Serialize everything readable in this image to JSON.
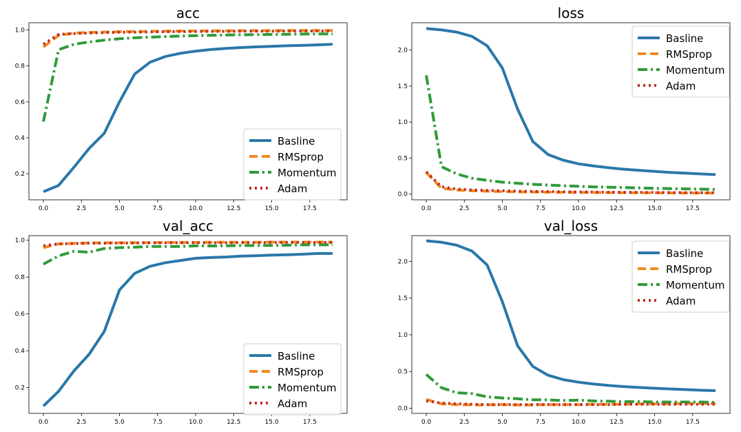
{
  "chart_data": [
    {
      "type": "line",
      "title": "acc",
      "xlabel": "",
      "ylabel": "",
      "xlim": [
        -0.95,
        19.95
      ],
      "ylim": [
        0.055,
        1.04
      ],
      "xticks": [
        0.0,
        2.5,
        5.0,
        7.5,
        10.0,
        12.5,
        15.0,
        17.5
      ],
      "xtick_labels": [
        "0.0",
        "2.5",
        "5.0",
        "7.5",
        "10.0",
        "12.5",
        "15.0",
        "17.5"
      ],
      "yticks": [
        0.2,
        0.4,
        0.6,
        0.8,
        1.0
      ],
      "ytick_labels": [
        "0.2",
        "0.4",
        "0.6",
        "0.8",
        "1.0"
      ],
      "legend_position": "lower-right",
      "grid": false,
      "x": [
        0,
        1,
        2,
        3,
        4,
        5,
        6,
        7,
        8,
        9,
        10,
        11,
        12,
        13,
        14,
        15,
        16,
        17,
        18,
        19
      ],
      "series": [
        {
          "name": "Basline",
          "color": "#2a77a9",
          "style": "solid",
          "values": [
            0.1,
            0.135,
            0.235,
            0.34,
            0.425,
            0.6,
            0.755,
            0.82,
            0.852,
            0.87,
            0.882,
            0.891,
            0.897,
            0.902,
            0.906,
            0.909,
            0.912,
            0.914,
            0.917,
            0.92
          ]
        },
        {
          "name": "RMSprop",
          "color": "#f08a22",
          "style": "dashed",
          "values": [
            0.905,
            0.97,
            0.982,
            0.986,
            0.988,
            0.99,
            0.991,
            0.992,
            0.993,
            0.994,
            0.994,
            0.995,
            0.995,
            0.996,
            0.996,
            0.996,
            0.997,
            0.997,
            0.997,
            0.997
          ]
        },
        {
          "name": "Momentum",
          "color": "#2f9a38",
          "style": "dashdot",
          "values": [
            0.49,
            0.89,
            0.92,
            0.933,
            0.943,
            0.951,
            0.956,
            0.96,
            0.963,
            0.966,
            0.968,
            0.97,
            0.972,
            0.973,
            0.974,
            0.975,
            0.976,
            0.977,
            0.978,
            0.978
          ]
        },
        {
          "name": "Adam",
          "color": "#c12a26",
          "style": "dotted",
          "values": [
            0.92,
            0.975,
            0.98,
            0.983,
            0.985,
            0.987,
            0.988,
            0.989,
            0.99,
            0.991,
            0.991,
            0.992,
            0.992,
            0.993,
            0.993,
            0.993,
            0.994,
            0.994,
            0.994,
            0.994
          ]
        }
      ]
    },
    {
      "type": "line",
      "title": "loss",
      "xlabel": "",
      "ylabel": "",
      "xlim": [
        -0.95,
        19.95
      ],
      "ylim": [
        -0.08,
        2.38
      ],
      "xticks": [
        0.0,
        2.5,
        5.0,
        7.5,
        10.0,
        12.5,
        15.0,
        17.5
      ],
      "xtick_labels": [
        "0.0",
        "2.5",
        "5.0",
        "7.5",
        "10.0",
        "12.5",
        "15.0",
        "17.5"
      ],
      "yticks": [
        0.0,
        0.5,
        1.0,
        1.5,
        2.0
      ],
      "ytick_labels": [
        "0.0",
        "0.5",
        "1.0",
        "1.5",
        "2.0"
      ],
      "legend_position": "upper-right",
      "grid": false,
      "x": [
        0,
        1,
        2,
        3,
        4,
        5,
        6,
        7,
        8,
        9,
        10,
        11,
        12,
        13,
        14,
        15,
        16,
        17,
        18,
        19
      ],
      "series": [
        {
          "name": "Basline",
          "color": "#2a77a9",
          "style": "solid",
          "values": [
            2.3,
            2.28,
            2.25,
            2.19,
            2.06,
            1.75,
            1.18,
            0.73,
            0.55,
            0.47,
            0.42,
            0.39,
            0.365,
            0.345,
            0.33,
            0.315,
            0.3,
            0.29,
            0.28,
            0.27
          ]
        },
        {
          "name": "RMSprop",
          "color": "#f08a22",
          "style": "dashed",
          "values": [
            0.3,
            0.08,
            0.055,
            0.045,
            0.04,
            0.035,
            0.03,
            0.028,
            0.026,
            0.024,
            0.022,
            0.021,
            0.02,
            0.019,
            0.018,
            0.017,
            0.016,
            0.015,
            0.015,
            0.014
          ]
        },
        {
          "name": "Momentum",
          "color": "#2f9a38",
          "style": "dashdot",
          "values": [
            1.65,
            0.38,
            0.28,
            0.22,
            0.19,
            0.165,
            0.15,
            0.135,
            0.125,
            0.115,
            0.108,
            0.1,
            0.095,
            0.09,
            0.085,
            0.08,
            0.075,
            0.072,
            0.068,
            0.065
          ]
        },
        {
          "name": "Adam",
          "color": "#c12a26",
          "style": "dotted",
          "values": [
            0.31,
            0.1,
            0.07,
            0.058,
            0.05,
            0.045,
            0.04,
            0.037,
            0.034,
            0.031,
            0.029,
            0.027,
            0.025,
            0.024,
            0.023,
            0.022,
            0.021,
            0.02,
            0.019,
            0.018
          ]
        }
      ]
    },
    {
      "type": "line",
      "title": "val_acc",
      "xlabel": "",
      "ylabel": "",
      "xlim": [
        -0.95,
        19.95
      ],
      "ylim": [
        0.06,
        1.025
      ],
      "xticks": [
        0.0,
        2.5,
        5.0,
        7.5,
        10.0,
        12.5,
        15.0,
        17.5
      ],
      "xtick_labels": [
        "0.0",
        "2.5",
        "5.0",
        "7.5",
        "10.0",
        "12.5",
        "15.0",
        "17.5"
      ],
      "yticks": [
        0.2,
        0.4,
        0.6,
        0.8,
        1.0
      ],
      "ytick_labels": [
        "0.2",
        "0.4",
        "0.6",
        "0.8",
        "1.0"
      ],
      "legend_position": "lower-right",
      "grid": false,
      "x": [
        0,
        1,
        2,
        3,
        4,
        5,
        6,
        7,
        8,
        9,
        10,
        11,
        12,
        13,
        14,
        15,
        16,
        17,
        18,
        19
      ],
      "series": [
        {
          "name": "Basline",
          "color": "#2a77a9",
          "style": "solid",
          "values": [
            0.1,
            0.18,
            0.29,
            0.38,
            0.505,
            0.73,
            0.82,
            0.858,
            0.878,
            0.89,
            0.902,
            0.906,
            0.909,
            0.914,
            0.916,
            0.919,
            0.921,
            0.924,
            0.928,
            0.928
          ]
        },
        {
          "name": "RMSprop",
          "color": "#f08a22",
          "style": "dashed",
          "values": [
            0.96,
            0.98,
            0.983,
            0.985,
            0.986,
            0.986,
            0.987,
            0.987,
            0.988,
            0.988,
            0.988,
            0.989,
            0.989,
            0.989,
            0.989,
            0.99,
            0.99,
            0.99,
            0.99,
            0.99
          ]
        },
        {
          "name": "Momentum",
          "color": "#2f9a38",
          "style": "dashdot",
          "values": [
            0.87,
            0.915,
            0.94,
            0.935,
            0.955,
            0.96,
            0.962,
            0.966,
            0.966,
            0.966,
            0.97,
            0.969,
            0.97,
            0.971,
            0.971,
            0.972,
            0.973,
            0.975,
            0.975,
            0.975
          ]
        },
        {
          "name": "Adam",
          "color": "#c12a26",
          "style": "dotted",
          "values": [
            0.97,
            0.98,
            0.982,
            0.984,
            0.984,
            0.985,
            0.985,
            0.986,
            0.986,
            0.986,
            0.987,
            0.987,
            0.987,
            0.987,
            0.987,
            0.988,
            0.988,
            0.988,
            0.988,
            0.988
          ]
        }
      ]
    },
    {
      "type": "line",
      "title": "val_loss",
      "xlabel": "",
      "ylabel": "",
      "xlim": [
        -0.95,
        19.95
      ],
      "ylim": [
        -0.07,
        2.35
      ],
      "xticks": [
        0.0,
        2.5,
        5.0,
        7.5,
        10.0,
        12.5,
        15.0,
        17.5
      ],
      "xtick_labels": [
        "0.0",
        "2.5",
        "5.0",
        "7.5",
        "10.0",
        "12.5",
        "15.0",
        "17.5"
      ],
      "yticks": [
        0.0,
        0.5,
        1.0,
        1.5,
        2.0
      ],
      "ytick_labels": [
        "0.0",
        "0.5",
        "1.0",
        "1.5",
        "2.0"
      ],
      "legend_position": "upper-right",
      "grid": false,
      "x": [
        0,
        1,
        2,
        3,
        4,
        5,
        6,
        7,
        8,
        9,
        10,
        11,
        12,
        13,
        14,
        15,
        16,
        17,
        18,
        19
      ],
      "series": [
        {
          "name": "Basline",
          "color": "#2a77a9",
          "style": "solid",
          "values": [
            2.28,
            2.26,
            2.22,
            2.14,
            1.95,
            1.45,
            0.85,
            0.57,
            0.45,
            0.39,
            0.355,
            0.33,
            0.31,
            0.295,
            0.283,
            0.272,
            0.263,
            0.255,
            0.245,
            0.24
          ]
        },
        {
          "name": "RMSprop",
          "color": "#f08a22",
          "style": "dashed",
          "values": [
            0.12,
            0.06,
            0.05,
            0.045,
            0.045,
            0.05,
            0.045,
            0.045,
            0.05,
            0.05,
            0.05,
            0.055,
            0.055,
            0.055,
            0.06,
            0.06,
            0.06,
            0.065,
            0.065,
            0.065
          ]
        },
        {
          "name": "Momentum",
          "color": "#2f9a38",
          "style": "dashdot",
          "values": [
            0.46,
            0.28,
            0.21,
            0.2,
            0.155,
            0.14,
            0.13,
            0.115,
            0.115,
            0.105,
            0.11,
            0.1,
            0.095,
            0.09,
            0.09,
            0.085,
            0.085,
            0.085,
            0.085,
            0.08
          ]
        },
        {
          "name": "Adam",
          "color": "#c12a26",
          "style": "dotted",
          "values": [
            0.1,
            0.07,
            0.06,
            0.055,
            0.05,
            0.05,
            0.05,
            0.05,
            0.05,
            0.05,
            0.05,
            0.05,
            0.05,
            0.055,
            0.055,
            0.055,
            0.055,
            0.055,
            0.055,
            0.055
          ]
        }
      ]
    }
  ]
}
